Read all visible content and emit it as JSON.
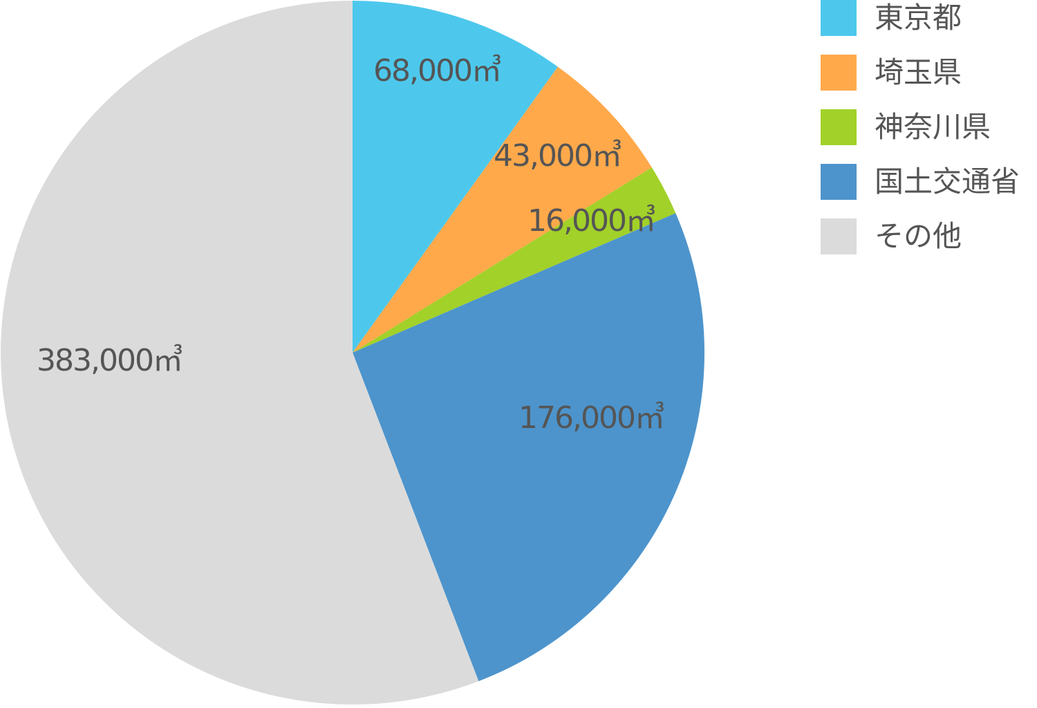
{
  "chart_data": {
    "type": "pie",
    "unit": "㎥",
    "legend_position": "top-right",
    "slices": [
      {
        "name": "東京都",
        "value": 68000,
        "label": "68,000㎥",
        "color": "#4dc8ec"
      },
      {
        "name": "埼玉県",
        "value": 43000,
        "label": "43,000㎥",
        "color": "#ffa94b"
      },
      {
        "name": "神奈川県",
        "value": 16000,
        "label": "16,000㎥",
        "color": "#a2d129"
      },
      {
        "name": "国土交通省",
        "value": 176000,
        "label": "176,000㎥",
        "color": "#4d94cc"
      },
      {
        "name": "その他",
        "value": 383000,
        "label": "383,000㎥",
        "color": "#dbdbdb"
      }
    ]
  }
}
